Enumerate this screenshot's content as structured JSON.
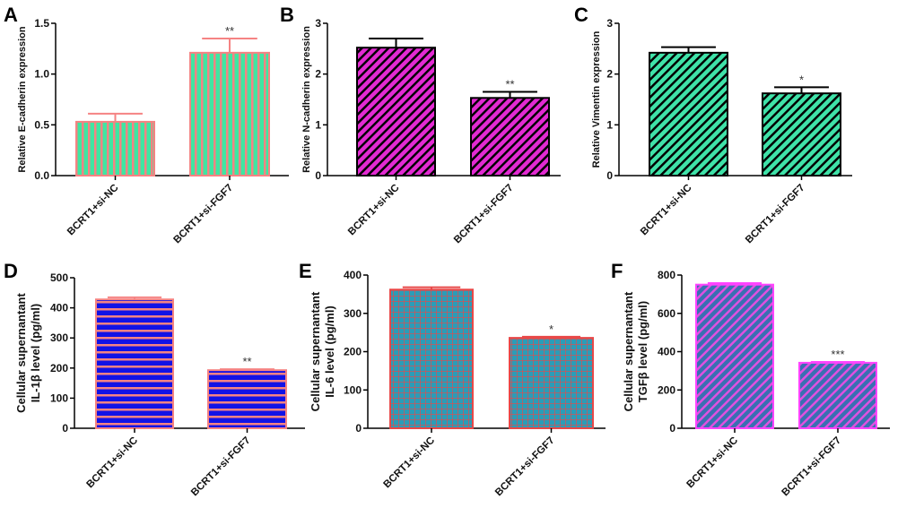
{
  "chart_data": [
    {
      "panel": "A",
      "type": "bar",
      "categories": [
        "BCRT1+si-NC",
        "BCRT1+si-FGF7"
      ],
      "values": [
        0.53,
        1.21
      ],
      "errors": [
        0.08,
        0.14
      ],
      "significance": [
        "",
        "**"
      ],
      "ylabel": [
        "Relative E-cadherin expression"
      ],
      "ylim": [
        0,
        1.5
      ],
      "yticks": [
        "0.0",
        "0.5",
        "1.0",
        "1.5"
      ],
      "tickvals": [
        0,
        0.5,
        1.0,
        1.5
      ],
      "fill": "#3fe6a2",
      "pattern_color": "#f58383",
      "outline": "#f58383",
      "pattern": "vertical"
    },
    {
      "panel": "B",
      "type": "bar",
      "categories": [
        "BCRT1+si-NC",
        "BCRT1+si-FGF7"
      ],
      "values": [
        2.52,
        1.53
      ],
      "errors": [
        0.18,
        0.12
      ],
      "significance": [
        "",
        "**"
      ],
      "ylabel": [
        "Relative N-cadherin expression"
      ],
      "ylim": [
        0,
        3
      ],
      "yticks": [
        "0",
        "1",
        "2",
        "3"
      ],
      "tickvals": [
        0,
        1,
        2,
        3
      ],
      "fill": "#e22ad2",
      "pattern_color": "#000000",
      "outline": "#000000",
      "pattern": "diagonal"
    },
    {
      "panel": "C",
      "type": "bar",
      "categories": [
        "BCRT1+si-NC",
        "BCRT1+si-FGF7"
      ],
      "values": [
        2.42,
        1.62
      ],
      "errors": [
        0.11,
        0.12
      ],
      "significance": [
        "",
        "*"
      ],
      "ylabel": [
        "Relative Vimentin expression"
      ],
      "ylim": [
        0,
        3
      ],
      "yticks": [
        "0",
        "1",
        "2",
        "3"
      ],
      "tickvals": [
        0,
        1,
        2,
        3
      ],
      "fill": "#3fe2a8",
      "pattern_color": "#000000",
      "outline": "#000000",
      "pattern": "diagonal"
    },
    {
      "panel": "D",
      "type": "bar",
      "categories": [
        "BCRT1+si-NC",
        "BCRT1+si-FGF7"
      ],
      "values": [
        428,
        193
      ],
      "errors": [
        7,
        3
      ],
      "significance": [
        "",
        "**"
      ],
      "ylabel": [
        "Cellular supernantant",
        "IL-1β level (pg/ml)"
      ],
      "ylim": [
        0,
        500
      ],
      "yticks": [
        "0",
        "100",
        "200",
        "300",
        "400",
        "500"
      ],
      "tickvals": [
        0,
        100,
        200,
        300,
        400,
        500
      ],
      "fill": "#1212e6",
      "pattern_color": "#f58383",
      "outline": "#f58383",
      "pattern": "horizontal"
    },
    {
      "panel": "E",
      "type": "bar",
      "categories": [
        "BCRT1+si-NC",
        "BCRT1+si-FGF7"
      ],
      "values": [
        362,
        236
      ],
      "errors": [
        6,
        3
      ],
      "significance": [
        "",
        "*"
      ],
      "ylabel": [
        "Cellular supernantant",
        "IL-6 level (pg/ml)"
      ],
      "ylim": [
        0,
        400
      ],
      "yticks": [
        "0",
        "100",
        "200",
        "300",
        "400"
      ],
      "tickvals": [
        0,
        100,
        200,
        300,
        400
      ],
      "fill": "#2a9db8",
      "pattern_color": "#e84848",
      "outline": "#e84848",
      "pattern": "grid"
    },
    {
      "panel": "F",
      "type": "bar",
      "categories": [
        "BCRT1+si-NC",
        "BCRT1+si-FGF7"
      ],
      "values": [
        750,
        342
      ],
      "errors": [
        8,
        4
      ],
      "significance": [
        "",
        "***"
      ],
      "ylabel": [
        "Cellular supernantant",
        "TGFβ level (pg/ml)"
      ],
      "ylim": [
        0,
        800
      ],
      "yticks": [
        "0",
        "200",
        "400",
        "600",
        "800"
      ],
      "tickvals": [
        0,
        200,
        400,
        600,
        800
      ],
      "fill": "#3a6fb2",
      "pattern_color": "#e050e0",
      "outline": "#ff44ff",
      "pattern": "diagonal"
    }
  ]
}
